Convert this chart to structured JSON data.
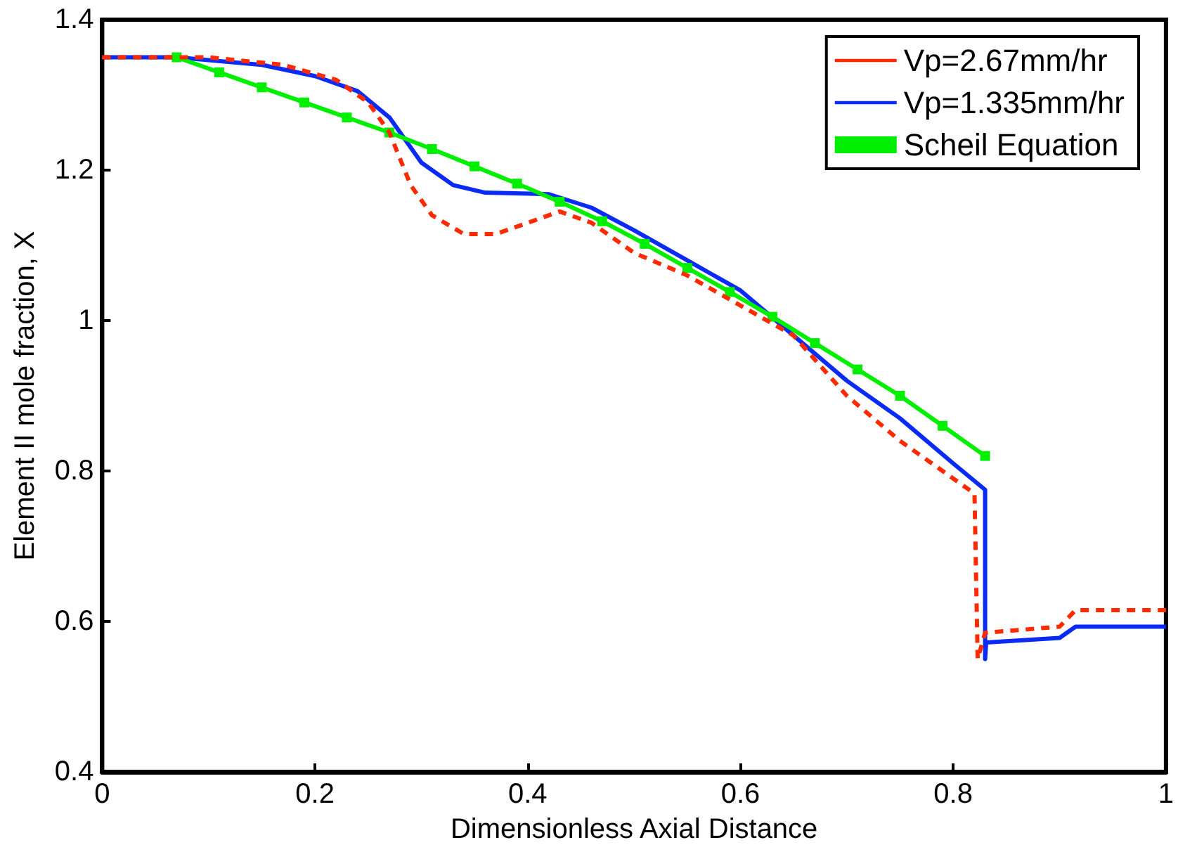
{
  "chart_data": {
    "type": "line",
    "xlabel": "Dimensionless Axial Distance",
    "ylabel": "Element II mole fraction, X",
    "xlim": [
      0,
      1
    ],
    "xticks": [
      0,
      0.2,
      0.4,
      0.6,
      0.8,
      1
    ],
    "ylim": [
      0.4,
      1.4
    ],
    "yticks": [
      0.4,
      0.6,
      0.8,
      1,
      1.2,
      1.4
    ],
    "grid": false,
    "legend": "top right",
    "series": [
      {
        "name": "Vp=2.67mm/hr",
        "color": "#ff2a00",
        "line_style": "dashed",
        "marker": "none",
        "x": [
          0,
          0.1,
          0.17,
          0.22,
          0.25,
          0.27,
          0.29,
          0.31,
          0.34,
          0.37,
          0.4,
          0.43,
          0.46,
          0.5,
          0.55,
          0.6,
          0.65,
          0.7,
          0.75,
          0.8,
          0.82,
          0.823,
          0.83,
          0.9,
          0.915,
          1
        ],
        "values": [
          1.35,
          1.35,
          1.34,
          1.32,
          1.29,
          1.25,
          1.18,
          1.14,
          1.115,
          1.115,
          1.13,
          1.145,
          1.13,
          1.09,
          1.06,
          1.02,
          0.98,
          0.9,
          0.84,
          0.79,
          0.77,
          0.55,
          0.585,
          0.593,
          0.615,
          0.615
        ]
      },
      {
        "name": "Vp=1.335mm/hr",
        "color": "#0a2af5",
        "line_style": "solid",
        "marker": "none",
        "x": [
          0,
          0.07,
          0.15,
          0.2,
          0.24,
          0.27,
          0.3,
          0.33,
          0.36,
          0.42,
          0.46,
          0.5,
          0.55,
          0.6,
          0.65,
          0.7,
          0.75,
          0.8,
          0.83,
          0.83,
          0.831,
          0.9,
          0.915,
          1
        ],
        "values": [
          1.35,
          1.35,
          1.34,
          1.325,
          1.305,
          1.27,
          1.21,
          1.18,
          1.17,
          1.168,
          1.15,
          1.12,
          1.08,
          1.04,
          0.98,
          0.92,
          0.87,
          0.81,
          0.775,
          0.55,
          0.572,
          0.578,
          0.593,
          0.593
        ]
      },
      {
        "name": "Scheil Equation",
        "color": "#00ee00",
        "line_style": "solid",
        "marker": "square",
        "x": [
          0.07,
          0.11,
          0.15,
          0.19,
          0.23,
          0.27,
          0.31,
          0.35,
          0.39,
          0.43,
          0.47,
          0.51,
          0.55,
          0.59,
          0.63,
          0.67,
          0.71,
          0.75,
          0.79,
          0.83
        ],
        "values": [
          1.35,
          1.33,
          1.31,
          1.29,
          1.27,
          1.25,
          1.228,
          1.205,
          1.182,
          1.158,
          1.132,
          1.102,
          1.07,
          1.038,
          1.005,
          0.97,
          0.935,
          0.9,
          0.86,
          0.82
        ]
      }
    ]
  }
}
